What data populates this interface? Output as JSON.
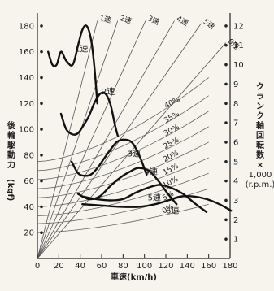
{
  "chart_data": {
    "type": "line",
    "title": "",
    "xlabel": "車速(km/h)",
    "ylabel": "後輪駆動力(kgf)",
    "ylabel_parts": [
      "後",
      "輪",
      "駆",
      "動",
      "力",
      "(kgf)"
    ],
    "y2label_parts": [
      "ク",
      "ラ",
      "ン",
      "ク",
      "軸",
      "回",
      "転",
      "数",
      "×",
      "1,000",
      "(r.p.m.)"
    ],
    "xlim": [
      0,
      180
    ],
    "ylim": [
      0,
      190
    ],
    "x_ticks": [
      "0",
      "20",
      "40",
      "60",
      "80",
      "100",
      "120",
      "140",
      "160",
      "180"
    ],
    "y_ticks": [
      "20",
      "40",
      "60",
      "80",
      "100",
      "120",
      "140",
      "160",
      "180"
    ],
    "y2_ticks": [
      "1",
      "2",
      "3",
      "4",
      "5",
      "6",
      "7",
      "8",
      "9",
      "10",
      "11",
      "12"
    ],
    "grid": false,
    "series": [
      {
        "name": "1速",
        "label_at": [
          35,
          160
        ],
        "points": [
          [
            10,
            160
          ],
          [
            14,
            150
          ],
          [
            18,
            150
          ],
          [
            22,
            160
          ],
          [
            27,
            153
          ],
          [
            33,
            150
          ],
          [
            38,
            165
          ],
          [
            42,
            177
          ],
          [
            46,
            180
          ],
          [
            50,
            170
          ],
          [
            53,
            150
          ],
          [
            56,
            120
          ]
        ]
      },
      {
        "name": "2速",
        "label_at": [
          60,
          127
        ],
        "points": [
          [
            22,
            112
          ],
          [
            27,
            100
          ],
          [
            33,
            96
          ],
          [
            38,
            97
          ],
          [
            43,
            103
          ],
          [
            48,
            110
          ],
          [
            53,
            120
          ],
          [
            58,
            127
          ],
          [
            63,
            128
          ],
          [
            68,
            120
          ],
          [
            72,
            105
          ],
          [
            75,
            95
          ]
        ]
      },
      {
        "name": "3速",
        "label_at": [
          84,
          79
        ],
        "points": [
          [
            32,
            75
          ],
          [
            38,
            66
          ],
          [
            44,
            64
          ],
          [
            50,
            65
          ],
          [
            56,
            70
          ],
          [
            62,
            77
          ],
          [
            68,
            84
          ],
          [
            74,
            90
          ],
          [
            80,
            92
          ],
          [
            88,
            90
          ],
          [
            95,
            80
          ],
          [
            102,
            65
          ]
        ]
      },
      {
        "name": "4速",
        "label_at": [
          100,
          65
        ],
        "points": [
          [
            38,
            50
          ],
          [
            48,
            46
          ],
          [
            58,
            48
          ],
          [
            68,
            56
          ],
          [
            78,
            63
          ],
          [
            86,
            67
          ],
          [
            94,
            70
          ],
          [
            104,
            68
          ],
          [
            113,
            60
          ],
          [
            122,
            50
          ],
          [
            130,
            42
          ]
        ]
      },
      {
        "name": "5速",
        "label_at": [
          103,
          45
        ],
        "points": [
          [
            42,
            48
          ],
          [
            55,
            46
          ],
          [
            68,
            45
          ],
          [
            80,
            46
          ],
          [
            92,
            51
          ],
          [
            104,
            55
          ],
          [
            114,
            57
          ],
          [
            124,
            55
          ],
          [
            136,
            50
          ],
          [
            148,
            42
          ],
          [
            158,
            36
          ]
        ]
      },
      {
        "name": "6速",
        "label_at": [
          120,
          35
        ],
        "points": [
          [
            42,
            42
          ],
          [
            60,
            41
          ],
          [
            78,
            40
          ],
          [
            95,
            40
          ],
          [
            110,
            42
          ],
          [
            122,
            45
          ],
          [
            134,
            48
          ],
          [
            146,
            48
          ],
          [
            158,
            46
          ],
          [
            170,
            42
          ],
          [
            181,
            37
          ]
        ]
      }
    ],
    "gear_lines": [
      {
        "name": "1速",
        "end": [
          56,
          184
        ]
      },
      {
        "name": "2速",
        "end": [
          75,
          184
        ]
      },
      {
        "name": "3速",
        "end": [
          101,
          184
        ]
      },
      {
        "name": "4速",
        "end": [
          128,
          184
        ]
      },
      {
        "name": "5速",
        "end": [
          153,
          182
        ]
      },
      {
        "name": "6速",
        "end": [
          176,
          167
        ]
      }
    ],
    "grade_curves": [
      {
        "label": "40%",
        "start_value": 75,
        "end_value": 140
      },
      {
        "label": "35%",
        "start_value": 68,
        "end_value": 126
      },
      {
        "label": "30%",
        "start_value": 61,
        "end_value": 114
      },
      {
        "label": "25%",
        "start_value": 54,
        "end_value": 102
      },
      {
        "label": "20%",
        "start_value": 47,
        "end_value": 90
      },
      {
        "label": "15%",
        "start_value": 40,
        "end_value": 78
      },
      {
        "label": "10%",
        "start_value": 33,
        "end_value": 66
      },
      {
        "label": "5%",
        "start_value": 27,
        "end_value": 54
      },
      {
        "label": "0%",
        "start_value": 20,
        "end_value": 42
      }
    ]
  }
}
